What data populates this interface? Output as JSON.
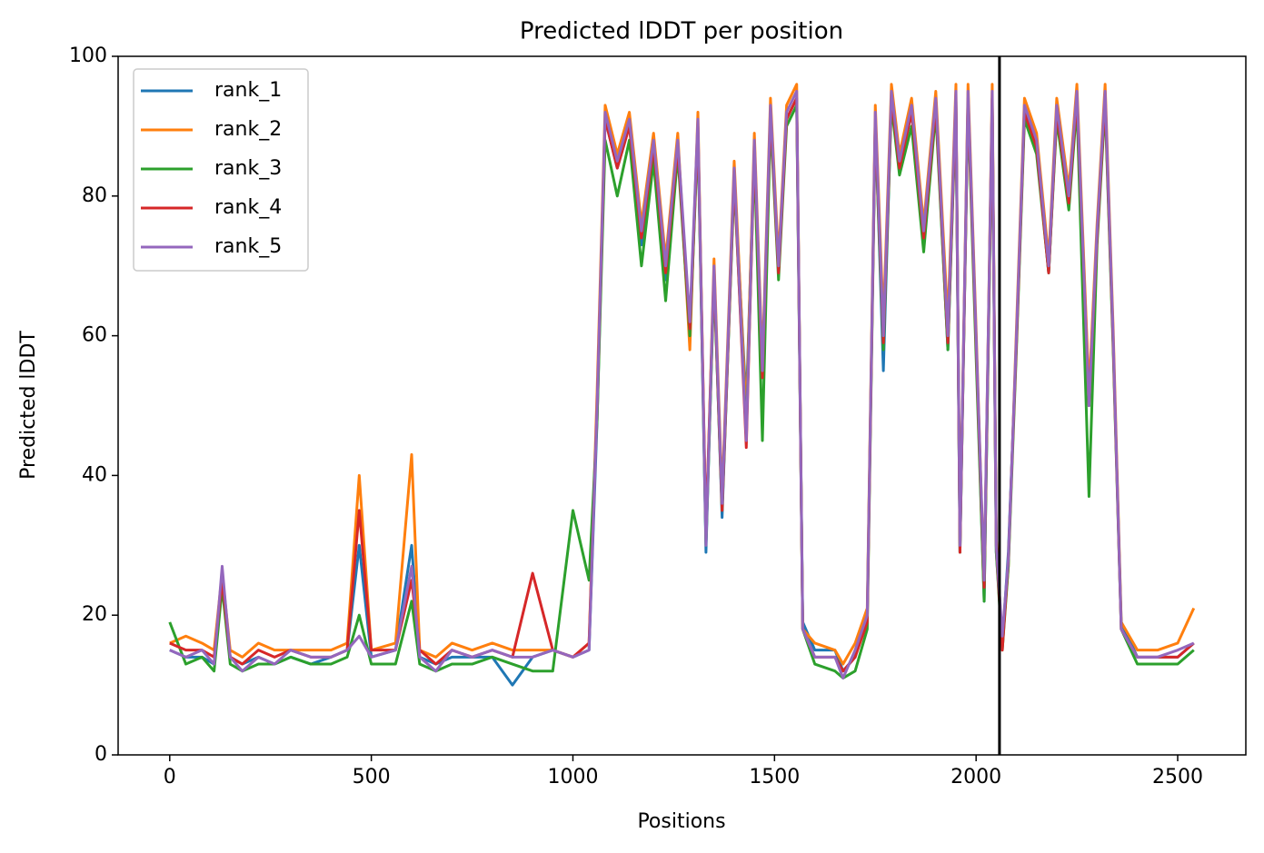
{
  "chart_data": {
    "type": "line",
    "title": "Predicted lDDT per position",
    "xlabel": "Positions",
    "ylabel": "Predicted lDDT",
    "xlim": [
      -128,
      2669
    ],
    "ylim": [
      0,
      100
    ],
    "xticks": [
      0,
      500,
      1000,
      1500,
      2000,
      2500
    ],
    "yticks": [
      0,
      20,
      40,
      60,
      80,
      100
    ],
    "legend": "upper left",
    "vline": 2058,
    "x": [
      0,
      40,
      80,
      110,
      130,
      150,
      180,
      220,
      260,
      300,
      350,
      400,
      440,
      470,
      500,
      560,
      600,
      620,
      660,
      700,
      750,
      800,
      850,
      900,
      950,
      1000,
      1040,
      1060,
      1080,
      1110,
      1140,
      1170,
      1200,
      1230,
      1260,
      1290,
      1310,
      1330,
      1350,
      1370,
      1400,
      1430,
      1450,
      1470,
      1490,
      1510,
      1530,
      1555,
      1570,
      1600,
      1650,
      1670,
      1700,
      1730,
      1750,
      1770,
      1790,
      1810,
      1840,
      1870,
      1900,
      1930,
      1950,
      1960,
      1980,
      2000,
      2020,
      2040,
      2050,
      2065,
      2080,
      2100,
      2120,
      2150,
      2180,
      2200,
      2230,
      2250,
      2280,
      2300,
      2320,
      2340,
      2360,
      2400,
      2450,
      2500,
      2540
    ],
    "series": [
      {
        "name": "rank_1",
        "color": "#1f77b4",
        "values": [
          15,
          14,
          14,
          13,
          25,
          14,
          13,
          14,
          13,
          14,
          13,
          14,
          15,
          30,
          14,
          15,
          30,
          14,
          13,
          14,
          14,
          14,
          10,
          14,
          15,
          14,
          15,
          48,
          91,
          84,
          90,
          73,
          87,
          68,
          87,
          60,
          90,
          29,
          69,
          34,
          83,
          50,
          87,
          54,
          92,
          70,
          91,
          94,
          19,
          15,
          15,
          12,
          14,
          20,
          91,
          55,
          94,
          84,
          92,
          74,
          93,
          58,
          94,
          29,
          94,
          59,
          22,
          94,
          29,
          16,
          29,
          59,
          92,
          87,
          69,
          92,
          79,
          94,
          50,
          74,
          94,
          59,
          19,
          14,
          14,
          14,
          16
        ]
      },
      {
        "name": "rank_2",
        "color": "#ff7f0e",
        "values": [
          16,
          17,
          16,
          15,
          26,
          15,
          14,
          16,
          15,
          15,
          15,
          15,
          16,
          40,
          15,
          16,
          43,
          15,
          14,
          16,
          15,
          16,
          15,
          15,
          15,
          14,
          16,
          52,
          93,
          86,
          92,
          76,
          89,
          71,
          89,
          58,
          92,
          31,
          71,
          37,
          85,
          48,
          89,
          56,
          94,
          71,
          93,
          96,
          18,
          16,
          15,
          13,
          16,
          21,
          93,
          62,
          96,
          86,
          94,
          76,
          95,
          62,
          96,
          30,
          96,
          61,
          24,
          96,
          31,
          16,
          27,
          61,
          94,
          89,
          71,
          94,
          81,
          96,
          52,
          76,
          96,
          61,
          19,
          15,
          15,
          16,
          21
        ]
      },
      {
        "name": "rank_3",
        "color": "#2ca02c",
        "values": [
          19,
          13,
          14,
          12,
          24,
          13,
          12,
          13,
          13,
          14,
          13,
          13,
          14,
          20,
          13,
          13,
          22,
          13,
          12,
          13,
          13,
          14,
          13,
          12,
          12,
          35,
          25,
          48,
          88,
          80,
          88,
          70,
          85,
          65,
          86,
          60,
          89,
          30,
          68,
          35,
          82,
          46,
          86,
          45,
          91,
          68,
          90,
          93,
          18,
          13,
          12,
          11,
          12,
          18,
          90,
          58,
          93,
          83,
          90,
          72,
          92,
          58,
          93,
          29,
          93,
          57,
          22,
          93,
          29,
          15,
          27,
          58,
          91,
          86,
          69,
          91,
          78,
          93,
          37,
          73,
          93,
          58,
          18,
          13,
          13,
          13,
          15
        ]
      },
      {
        "name": "rank_4",
        "color": "#d62728",
        "values": [
          16,
          15,
          15,
          14,
          25,
          14,
          13,
          15,
          14,
          15,
          14,
          14,
          15,
          35,
          15,
          15,
          25,
          15,
          13,
          15,
          14,
          15,
          14,
          26,
          15,
          14,
          16,
          50,
          91,
          84,
          90,
          74,
          87,
          69,
          87,
          61,
          90,
          32,
          69,
          35,
          83,
          44,
          87,
          54,
          92,
          69,
          91,
          94,
          18,
          14,
          14,
          12,
          14,
          19,
          91,
          59,
          94,
          84,
          92,
          74,
          93,
          59,
          94,
          29,
          94,
          59,
          24,
          94,
          30,
          15,
          28,
          59,
          92,
          87,
          69,
          92,
          79,
          94,
          50,
          74,
          94,
          59,
          18,
          14,
          14,
          14,
          16
        ]
      },
      {
        "name": "rank_5",
        "color": "#9467bd",
        "values": [
          15,
          14,
          15,
          13,
          27,
          14,
          12,
          14,
          13,
          15,
          14,
          14,
          15,
          17,
          14,
          15,
          27,
          14,
          12,
          15,
          14,
          15,
          14,
          14,
          15,
          14,
          15,
          50,
          92,
          85,
          91,
          75,
          88,
          70,
          88,
          62,
          91,
          30,
          70,
          36,
          84,
          45,
          88,
          55,
          93,
          70,
          92,
          95,
          18,
          14,
          14,
          11,
          15,
          20,
          92,
          60,
          95,
          85,
          93,
          75,
          94,
          60,
          95,
          30,
          95,
          60,
          25,
          95,
          30,
          17,
          28,
          60,
          93,
          88,
          70,
          93,
          80,
          95,
          50,
          75,
          95,
          60,
          18,
          14,
          14,
          15,
          16
        ]
      }
    ]
  }
}
